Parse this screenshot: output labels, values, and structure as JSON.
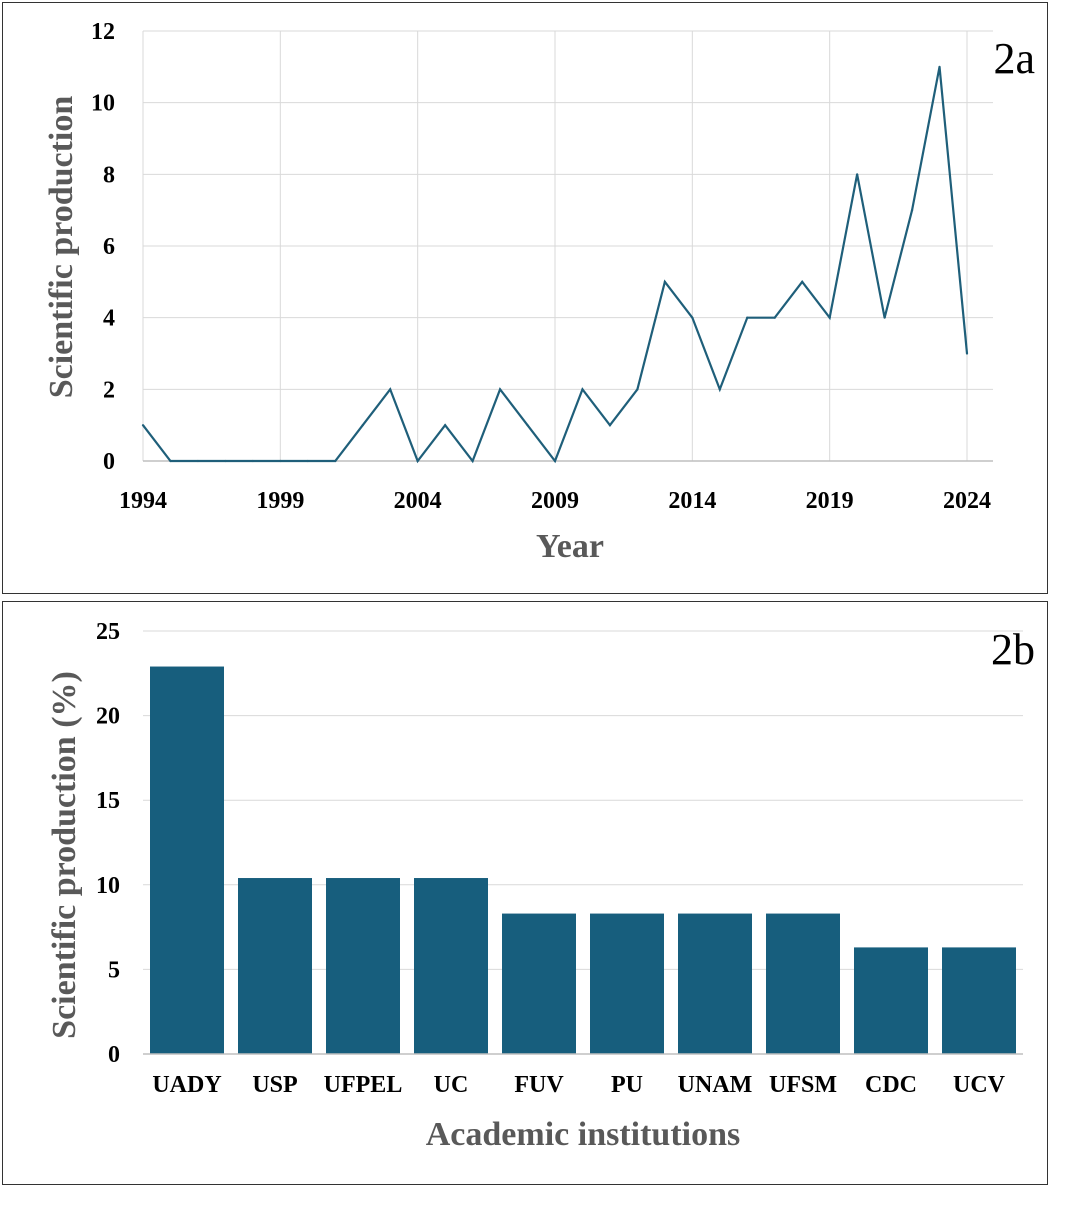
{
  "chart_data": [
    {
      "type": "line",
      "panel_label": "2a",
      "xlabel": "Year",
      "ylabel": "Scientific production",
      "x": [
        1994,
        1995,
        1996,
        1997,
        1998,
        1999,
        2000,
        2001,
        2002,
        2003,
        2004,
        2005,
        2006,
        2007,
        2008,
        2009,
        2010,
        2011,
        2012,
        2013,
        2014,
        2015,
        2016,
        2017,
        2018,
        2019,
        2020,
        2021,
        2022,
        2023,
        2024
      ],
      "values": [
        1,
        0,
        0,
        0,
        0,
        0,
        0,
        0,
        1,
        2,
        0,
        1,
        0,
        2,
        1,
        0,
        2,
        1,
        2,
        5,
        4,
        2,
        4,
        4,
        5,
        4,
        8,
        4,
        7,
        11,
        3
      ],
      "xticks": [
        "1994",
        "1999",
        "2004",
        "2009",
        "2014",
        "2019",
        "2024"
      ],
      "yticks": [
        "0",
        "2",
        "4",
        "6",
        "8",
        "10",
        "12"
      ],
      "xlim": [
        1994,
        2024
      ],
      "ylim": [
        0,
        12
      ],
      "grid": true,
      "color": "#1f5f7a"
    },
    {
      "type": "bar",
      "panel_label": "2b",
      "xlabel": "Academic institutions",
      "ylabel": "Scientific production (%)",
      "categories": [
        "UADY",
        "USP",
        "UFPEL",
        "UC",
        "FUV",
        "PU",
        "UNAM",
        "UFSM",
        "CDC",
        "UCV"
      ],
      "values": [
        22.9,
        10.4,
        10.4,
        10.4,
        8.3,
        8.3,
        8.3,
        8.3,
        6.3,
        6.3
      ],
      "yticks": [
        "0",
        "5",
        "10",
        "15",
        "20",
        "25"
      ],
      "ylim": [
        0,
        25
      ],
      "grid": true,
      "color": "#175e7d"
    }
  ]
}
